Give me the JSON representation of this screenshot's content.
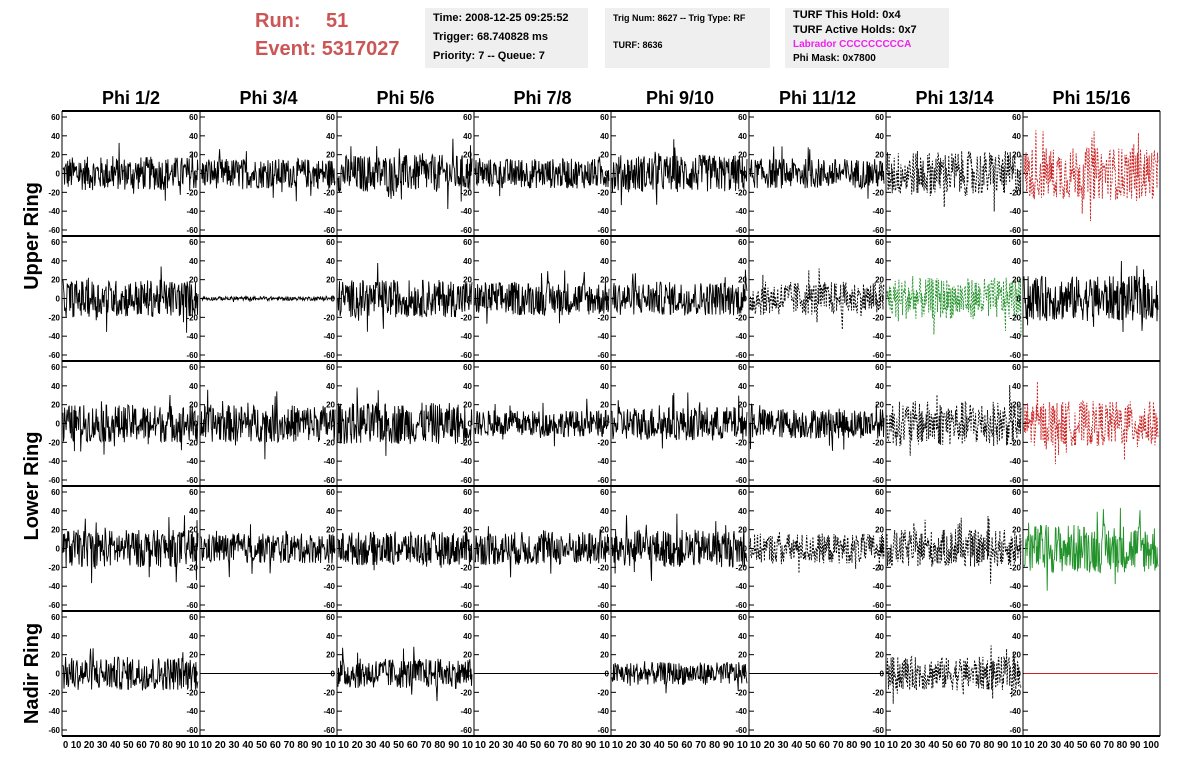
{
  "header": {
    "run_label": "Run:",
    "run_value": "51",
    "event_label": "Event:",
    "event_value": "5317027"
  },
  "info": {
    "time": "Time: 2008-12-25 09:25:52",
    "trigger": "Trigger: 68.740828 ms",
    "priority": "Priority: 7 -- Queue: 7",
    "trig_num": "Trig Num: 8627 -- Trig Type: RF",
    "turf": "TURF: 8636",
    "turf_hold": "TURF This Hold: 0x4",
    "turf_active": "TURF Active Holds: 0x7",
    "labrador": "Labrador CCCCCCCCCA",
    "phi_mask": "Phi Mask: 0x7800",
    "labrador_color": "#ee22ee"
  },
  "chart_data": {
    "type": "line",
    "columns": [
      "Phi 1/2",
      "Phi 3/4",
      "Phi 5/6",
      "Phi 7/8",
      "Phi 9/10",
      "Phi 11/12",
      "Phi 13/14",
      "Phi 15/16"
    ],
    "row_labels": [
      {
        "label": "Upper Ring",
        "rows": [
          0,
          1
        ]
      },
      {
        "label": "Lower Ring",
        "rows": [
          2,
          3
        ]
      },
      {
        "label": "Nadir Ring",
        "rows": [
          4,
          4
        ]
      }
    ],
    "ylim": [
      -60,
      60
    ],
    "yticks": [
      "-60",
      "-40",
      "-20",
      "0",
      "20",
      "40",
      "60"
    ],
    "xlim": [
      0,
      100
    ],
    "xtick_rows": [
      "0 10 20 30 40 50 60 70 80 90 10",
      "10 20 30 40 50 60 70 80 90 10",
      "10 20 30 40 50 60 70 80 90 10",
      "10 20 30 40 50 60 70 80 90 10",
      "10 20 30 40 50 60 70 80 90 10",
      "10 20 30 40 50 60 70 80 90 10",
      "10 20 30 40 50 60 70 80 90 10",
      "10 20 30 40 50 60 70 80 90 100"
    ],
    "colors": {
      "normal": "#000000",
      "red": "#cc2222",
      "green": "#22922a"
    },
    "grid": [
      [
        {
          "amp": 18,
          "style": "solid",
          "color": "normal"
        },
        {
          "amp": 16,
          "style": "solid",
          "color": "normal"
        },
        {
          "amp": 20,
          "style": "solid",
          "color": "normal"
        },
        {
          "amp": 16,
          "style": "solid",
          "color": "normal"
        },
        {
          "amp": 20,
          "style": "solid",
          "color": "normal"
        },
        {
          "amp": 16,
          "style": "solid",
          "color": "normal"
        },
        {
          "amp": 24,
          "style": "dashed",
          "color": "normal"
        },
        {
          "amp": 28,
          "style": "dashed",
          "color": "red"
        }
      ],
      [
        {
          "amp": 20,
          "style": "solid",
          "color": "normal"
        },
        {
          "amp": 2,
          "style": "solid",
          "color": "normal"
        },
        {
          "amp": 20,
          "style": "solid",
          "color": "normal"
        },
        {
          "amp": 18,
          "style": "solid",
          "color": "normal"
        },
        {
          "amp": 18,
          "style": "solid",
          "color": "normal"
        },
        {
          "amp": 18,
          "style": "dashed",
          "color": "normal"
        },
        {
          "amp": 22,
          "style": "dashed",
          "color": "green"
        },
        {
          "amp": 24,
          "style": "solid",
          "color": "normal"
        }
      ],
      [
        {
          "amp": 20,
          "style": "solid",
          "color": "normal"
        },
        {
          "amp": 20,
          "style": "solid",
          "color": "normal"
        },
        {
          "amp": 22,
          "style": "solid",
          "color": "normal"
        },
        {
          "amp": 14,
          "style": "solid",
          "color": "normal"
        },
        {
          "amp": 18,
          "style": "solid",
          "color": "normal"
        },
        {
          "amp": 16,
          "style": "solid",
          "color": "normal"
        },
        {
          "amp": 24,
          "style": "dashed",
          "color": "normal"
        },
        {
          "amp": 24,
          "style": "dashed",
          "color": "red"
        }
      ],
      [
        {
          "amp": 20,
          "style": "solid",
          "color": "normal"
        },
        {
          "amp": 16,
          "style": "solid",
          "color": "normal"
        },
        {
          "amp": 18,
          "style": "solid",
          "color": "normal"
        },
        {
          "amp": 18,
          "style": "solid",
          "color": "normal"
        },
        {
          "amp": 20,
          "style": "solid",
          "color": "normal"
        },
        {
          "amp": 16,
          "style": "dashed",
          "color": "normal"
        },
        {
          "amp": 20,
          "style": "dashed",
          "color": "normal"
        },
        {
          "amp": 26,
          "style": "solid",
          "color": "green"
        }
      ],
      [
        {
          "amp": 18,
          "style": "solid",
          "color": "normal"
        },
        {
          "amp": 0,
          "style": "solid",
          "color": "normal"
        },
        {
          "amp": 16,
          "style": "solid",
          "color": "normal"
        },
        {
          "amp": 0,
          "style": "solid",
          "color": "normal"
        },
        {
          "amp": 12,
          "style": "solid",
          "color": "normal"
        },
        {
          "amp": 0,
          "style": "solid",
          "color": "normal"
        },
        {
          "amp": 18,
          "style": "dashed",
          "color": "normal"
        },
        {
          "amp": 0,
          "style": "solid",
          "color": "red"
        }
      ]
    ]
  }
}
